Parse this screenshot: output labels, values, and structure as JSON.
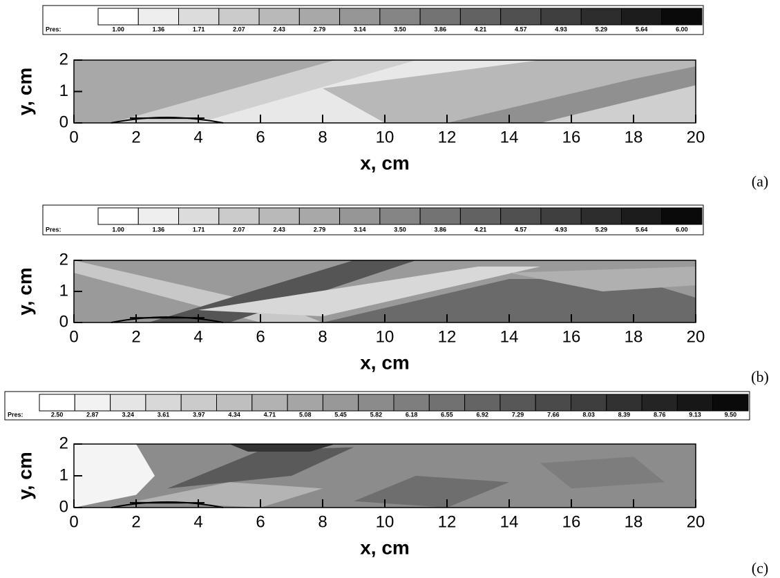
{
  "chart_data": [
    {
      "type": "contour",
      "panel_label": "(a)",
      "colorbar_title": "Pres:",
      "colorbar_ticks": [
        {
          "value": 1,
          "label": "1.00"
        },
        1.36,
        1.71,
        2.07,
        2.43,
        2.79,
        3.14,
        {
          "value": 3.5,
          "label": "3.50"
        },
        3.86,
        4.21,
        4.57,
        4.93,
        5.29,
        5.64,
        {
          "value": 6,
          "label": "6.00"
        }
      ],
      "x_label": "x, cm",
      "y_label": "y, cm",
      "xlim": [
        0,
        20
      ],
      "xticks": [
        0,
        2,
        4,
        6,
        8,
        10,
        12,
        14,
        16,
        18,
        20
      ],
      "ylim": [
        0,
        2
      ],
      "yticks": [
        0,
        1,
        2
      ]
    },
    {
      "type": "contour",
      "panel_label": "(b)",
      "colorbar_title": "Pres:",
      "colorbar_ticks": [
        {
          "value": 1,
          "label": "1.00"
        },
        1.36,
        1.71,
        2.07,
        2.43,
        2.79,
        3.14,
        {
          "value": 3.5,
          "label": "3.50"
        },
        3.86,
        4.21,
        4.57,
        4.93,
        5.29,
        5.64,
        {
          "value": 6,
          "label": "6.00"
        }
      ],
      "x_label": "x, cm",
      "y_label": "y, cm",
      "xlim": [
        0,
        20
      ],
      "xticks": [
        0,
        2,
        4,
        6,
        8,
        10,
        12,
        14,
        16,
        18,
        20
      ],
      "ylim": [
        0,
        2
      ],
      "yticks": [
        0,
        1,
        2
      ]
    },
    {
      "type": "contour",
      "panel_label": "(c)",
      "colorbar_title": "Pres:",
      "colorbar_ticks": [
        {
          "value": 2.5,
          "label": "2.50"
        },
        2.87,
        3.24,
        3.61,
        3.97,
        4.34,
        4.71,
        5.08,
        5.45,
        5.82,
        6.18,
        6.55,
        6.92,
        7.29,
        7.66,
        8.03,
        8.39,
        8.76,
        9.13,
        {
          "value": 9.5,
          "label": "9.50"
        }
      ],
      "x_label": "x, cm",
      "y_label": "y, cm",
      "xlim": [
        0,
        20
      ],
      "xticks": [
        0,
        2,
        4,
        6,
        8,
        10,
        12,
        14,
        16,
        18,
        20
      ],
      "ylim": [
        0,
        2
      ],
      "yticks": [
        0,
        1,
        2
      ]
    }
  ]
}
